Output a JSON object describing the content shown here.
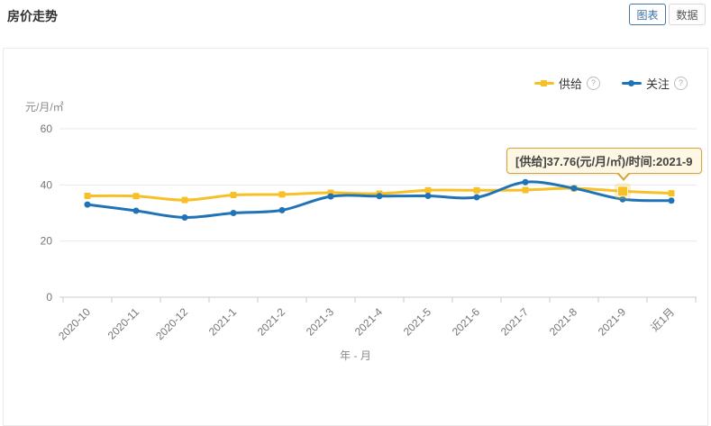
{
  "page": {
    "title": "房价走势"
  },
  "toggle": {
    "chart_label": "图表",
    "data_label": "数据"
  },
  "legend": {
    "help_symbol": "?"
  },
  "tooltip": {
    "text": "[供给]37.76(元/月/㎡)/时间:2021-9"
  },
  "colors": {
    "supply": "#F6C026",
    "attention": "#2173B7",
    "accent_blue": "#3D6FA3",
    "tooltip_bg": "#FDF7E3",
    "tooltip_border": "#D2A63C",
    "grid_line": "#E9E9E9",
    "axis_line": "#CBCBCB",
    "axis_text": "#757575"
  },
  "chart_data": {
    "type": "line",
    "title": "房价走势",
    "categories": [
      "2020-10",
      "2020-11",
      "2020-12",
      "2021-1",
      "2021-2",
      "2021-3",
      "2021-4",
      "2021-5",
      "2021-6",
      "2021-7",
      "2021-8",
      "2021-9",
      "近1月"
    ],
    "series": [
      {
        "name": "供给",
        "color": "#F6C026",
        "symbol": "square",
        "values": [
          36.1,
          36.0,
          34.6,
          36.4,
          36.6,
          37.2,
          36.9,
          38.1,
          38.1,
          38.2,
          38.8,
          37.76,
          37.0
        ]
      },
      {
        "name": "关注",
        "color": "#2173B7",
        "symbol": "circle",
        "values": [
          33.0,
          30.8,
          28.4,
          30.0,
          31.0,
          35.9,
          36.0,
          36.1,
          35.6,
          41.0,
          38.8,
          34.9,
          34.4
        ]
      }
    ],
    "xlabel": "年 - 月",
    "ylabel": "元/月/㎡",
    "ylim": [
      0,
      60
    ],
    "yticks": [
      0,
      20,
      40,
      60
    ],
    "x_label_rotation": 45,
    "grid": true,
    "legend_position": "top-right",
    "highlight": {
      "series": "供给",
      "category": "2021-9",
      "value": 37.76
    }
  }
}
